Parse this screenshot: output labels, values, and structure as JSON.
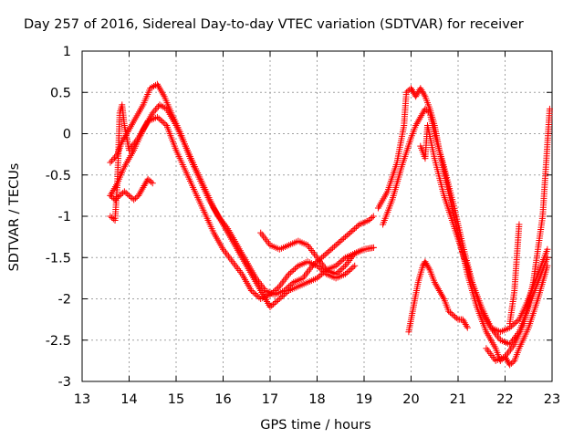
{
  "chart_data": {
    "type": "scatter",
    "title": "Day 257 of 2016, Sidereal Day-to-day VTEC variation (SDTVAR) for receiver",
    "xlabel": "GPS time / hours",
    "ylabel": "SDTVAR / TECUs",
    "xlim": [
      13,
      23
    ],
    "ylim": [
      -3,
      1
    ],
    "xticks": [
      "13",
      "14",
      "15",
      "16",
      "17",
      "18",
      "19",
      "20",
      "21",
      "22",
      "23"
    ],
    "yticks": [
      "-3",
      "-2.5",
      "-2",
      "-1.5",
      "-1",
      "-0.5",
      "0",
      "0.5",
      "1"
    ],
    "grid": true,
    "legend": "none",
    "marker": "+",
    "series_color": "#ff0000",
    "series": [
      {
        "x": [
          13.6,
          13.75,
          13.85,
          13.95,
          14.1,
          14.3,
          14.45,
          14.6,
          14.75,
          14.9,
          15.1,
          15.3,
          15.5,
          15.7,
          15.9,
          16.1,
          16.3,
          16.5,
          16.7,
          16.9,
          17.1,
          17.3,
          17.5,
          17.7,
          17.9,
          18.1,
          18.3,
          18.5,
          18.7,
          18.9,
          19.1,
          19.2
        ],
        "y": [
          -0.35,
          -0.25,
          -0.1,
          0.0,
          0.15,
          0.35,
          0.55,
          0.6,
          0.45,
          0.25,
          0.0,
          -0.3,
          -0.55,
          -0.8,
          -1.0,
          -1.15,
          -1.35,
          -1.55,
          -1.75,
          -1.9,
          -1.95,
          -1.9,
          -1.8,
          -1.75,
          -1.6,
          -1.5,
          -1.4,
          -1.3,
          -1.2,
          -1.1,
          -1.05,
          -1.0
        ]
      },
      {
        "x": [
          13.6,
          13.75,
          13.9,
          14.1,
          14.3,
          14.5,
          14.65,
          14.8,
          15.0,
          15.2,
          15.4,
          15.6,
          15.8,
          16.0,
          16.2,
          16.4,
          16.6,
          16.8,
          17.0,
          17.2,
          17.4,
          17.6,
          17.8,
          18.0,
          18.2,
          18.4,
          18.6,
          18.8,
          19.0,
          19.2
        ],
        "y": [
          -0.75,
          -0.6,
          -0.4,
          -0.2,
          0.05,
          0.25,
          0.35,
          0.3,
          0.1,
          -0.15,
          -0.4,
          -0.65,
          -0.9,
          -1.1,
          -1.3,
          -1.5,
          -1.7,
          -1.9,
          -2.1,
          -2.0,
          -1.9,
          -1.85,
          -1.8,
          -1.75,
          -1.65,
          -1.6,
          -1.5,
          -1.45,
          -1.4,
          -1.38
        ]
      },
      {
        "x": [
          13.6,
          13.7,
          13.8,
          13.9,
          14.0,
          14.1,
          14.2,
          14.3,
          14.4,
          14.5
        ],
        "y": [
          -0.75,
          -0.8,
          -0.75,
          -0.7,
          -0.75,
          -0.8,
          -0.75,
          -0.65,
          -0.55,
          -0.6
        ]
      },
      {
        "x": [
          13.6,
          13.7,
          13.75,
          13.8,
          13.85,
          13.9,
          14.0,
          14.2,
          14.4,
          14.6,
          14.8,
          15.0,
          15.2,
          15.4,
          15.6,
          15.8,
          16.0,
          16.2,
          16.4,
          16.6,
          16.8,
          17.0,
          17.2,
          17.4,
          17.6,
          17.8,
          18.0,
          18.2,
          18.4,
          18.6,
          18.8
        ],
        "y": [
          -1.0,
          -1.05,
          -0.6,
          0.25,
          0.35,
          0.1,
          -0.2,
          -0.05,
          0.15,
          0.2,
          0.1,
          -0.2,
          -0.45,
          -0.7,
          -0.95,
          -1.2,
          -1.4,
          -1.55,
          -1.7,
          -1.9,
          -2.0,
          -1.95,
          -1.85,
          -1.7,
          -1.6,
          -1.55,
          -1.6,
          -1.7,
          -1.75,
          -1.7,
          -1.6
        ]
      },
      {
        "x": [
          16.8,
          17.0,
          17.2,
          17.4,
          17.6,
          17.8,
          18.0,
          18.2,
          18.4,
          18.6,
          18.8,
          19.0,
          19.2
        ],
        "y": [
          -1.2,
          -1.35,
          -1.4,
          -1.35,
          -1.3,
          -1.35,
          -1.5,
          -1.65,
          -1.7,
          -1.6,
          -1.45,
          -1.4,
          -1.38
        ]
      },
      {
        "x": [
          19.3,
          19.5,
          19.7,
          19.85,
          19.9,
          20.0,
          20.1,
          20.2,
          20.3,
          20.4,
          20.5,
          20.6,
          20.8,
          21.0,
          21.2,
          21.4,
          21.6,
          21.8,
          21.9,
          22.0,
          22.2,
          22.4,
          22.6,
          22.8,
          22.95
        ],
        "y": [
          -0.9,
          -0.7,
          -0.35,
          0.1,
          0.5,
          0.55,
          0.45,
          0.55,
          0.45,
          0.3,
          0.1,
          -0.2,
          -0.7,
          -1.2,
          -1.7,
          -2.1,
          -2.4,
          -2.6,
          -2.75,
          -2.7,
          -2.55,
          -2.3,
          -1.8,
          -1.0,
          0.3
        ]
      },
      {
        "x": [
          19.4,
          19.6,
          19.8,
          20.0,
          20.1,
          20.2,
          20.3,
          20.4,
          20.5,
          20.7,
          20.9,
          21.1,
          21.3,
          21.5,
          21.7,
          21.9,
          22.1,
          22.3,
          22.5,
          22.7,
          22.9
        ],
        "y": [
          -1.1,
          -0.8,
          -0.4,
          -0.05,
          0.1,
          0.2,
          0.3,
          0.25,
          0.0,
          -0.4,
          -0.85,
          -1.35,
          -1.8,
          -2.15,
          -2.35,
          -2.4,
          -2.35,
          -2.25,
          -2.0,
          -1.7,
          -1.4
        ]
      },
      {
        "x": [
          20.2,
          20.3,
          20.35,
          20.5,
          20.7,
          20.9,
          21.1,
          21.3,
          21.5,
          21.7,
          21.9,
          22.1,
          22.3,
          22.5,
          22.7,
          22.9
        ],
        "y": [
          -0.15,
          -0.3,
          0.1,
          -0.3,
          -0.75,
          -1.1,
          -1.45,
          -1.8,
          -2.1,
          -2.35,
          -2.5,
          -2.55,
          -2.4,
          -2.1,
          -1.8,
          -1.5
        ]
      },
      {
        "x": [
          21.6,
          21.8,
          22.0,
          22.1,
          22.2,
          22.3,
          22.5,
          22.7,
          22.9
        ],
        "y": [
          -2.6,
          -2.75,
          -2.7,
          -2.8,
          -2.75,
          -2.6,
          -2.35,
          -2.0,
          -1.6
        ]
      },
      {
        "x": [
          22.1,
          22.2,
          22.3
        ],
        "y": [
          -2.3,
          -1.9,
          -1.1
        ]
      },
      {
        "x": [
          19.95,
          20.05,
          20.15,
          20.25,
          20.3,
          20.4,
          20.5,
          20.6,
          20.7,
          20.8,
          20.9,
          21.0,
          21.1,
          21.2
        ],
        "y": [
          -2.4,
          -2.1,
          -1.8,
          -1.6,
          -1.55,
          -1.65,
          -1.8,
          -1.9,
          -2.0,
          -2.15,
          -2.2,
          -2.25,
          -2.25,
          -2.35
        ]
      }
    ]
  }
}
